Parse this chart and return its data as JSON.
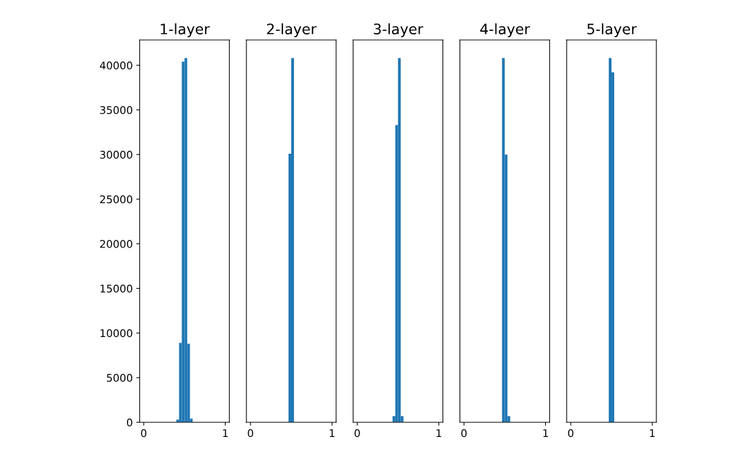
{
  "chart_data": [
    {
      "type": "histogram",
      "title": "1-layer",
      "color": "#1f77b4",
      "bins": [
        0,
        0.0333,
        0.0667,
        0.1,
        0.1333,
        0.1667,
        0.2,
        0.2333,
        0.2667,
        0.3,
        0.3333,
        0.3667,
        0.4,
        0.4333,
        0.4667,
        0.5,
        0.5333,
        0.5667,
        0.6,
        0.6333,
        0.6667,
        0.7,
        0.7333,
        0.7667,
        0.8,
        0.8333,
        0.8667,
        0.9,
        0.9333,
        0.9667,
        1
      ],
      "values": [
        0,
        0,
        0,
        0,
        0,
        0,
        0,
        0,
        0,
        0,
        0,
        0,
        300,
        8900,
        40400,
        40800,
        8800,
        400,
        0,
        0,
        0,
        0,
        0,
        0,
        0,
        0,
        0,
        0,
        0,
        0
      ],
      "xlim": [
        -0.05,
        1.05
      ],
      "xticks": [
        0,
        1
      ],
      "ylim": [
        0,
        42840
      ],
      "yticks": [
        0,
        5000,
        10000,
        15000,
        20000,
        25000,
        30000,
        35000,
        40000
      ]
    },
    {
      "type": "histogram",
      "title": "2-layer",
      "color": "#1f77b4",
      "bins": [
        0,
        0.0333,
        0.0667,
        0.1,
        0.1333,
        0.1667,
        0.2,
        0.2333,
        0.2667,
        0.3,
        0.3333,
        0.3667,
        0.4,
        0.4333,
        0.4667,
        0.5,
        0.5333,
        0.5667,
        0.6,
        0.6333,
        0.6667,
        0.7,
        0.7333,
        0.7667,
        0.8,
        0.8333,
        0.8667,
        0.9,
        0.9333,
        0.9667,
        1
      ],
      "values": [
        0,
        0,
        0,
        0,
        0,
        0,
        0,
        0,
        0,
        0,
        0,
        0,
        0,
        0,
        30100,
        40800,
        0,
        0,
        0,
        0,
        0,
        0,
        0,
        0,
        0,
        0,
        0,
        0,
        0,
        0
      ],
      "xlim": [
        -0.05,
        1.05
      ],
      "xticks": [
        0,
        1
      ],
      "ylim": [
        0,
        42840
      ],
      "tick_labels": "x"
    },
    {
      "type": "histogram",
      "title": "3-layer",
      "color": "#1f77b4",
      "bins": [
        0,
        0.0333,
        0.0667,
        0.1,
        0.1333,
        0.1667,
        0.2,
        0.2333,
        0.2667,
        0.3,
        0.3333,
        0.3667,
        0.4,
        0.4333,
        0.4667,
        0.5,
        0.5333,
        0.5667,
        0.6,
        0.6333,
        0.6667,
        0.7,
        0.7333,
        0.7667,
        0.8,
        0.8333,
        0.8667,
        0.9,
        0.9333,
        0.9667,
        1
      ],
      "values": [
        0,
        0,
        0,
        0,
        0,
        0,
        0,
        0,
        0,
        0,
        0,
        0,
        0,
        700,
        33300,
        40800,
        700,
        0,
        0,
        0,
        0,
        0,
        0,
        0,
        0,
        0,
        0,
        0,
        0,
        0
      ],
      "xlim": [
        -0.05,
        1.05
      ],
      "xticks": [
        0,
        1
      ],
      "ylim": [
        0,
        42840
      ],
      "tick_labels": "x"
    },
    {
      "type": "histogram",
      "title": "4-layer",
      "color": "#1f77b4",
      "bins": [
        0,
        0.0333,
        0.0667,
        0.1,
        0.1333,
        0.1667,
        0.2,
        0.2333,
        0.2667,
        0.3,
        0.3333,
        0.3667,
        0.4,
        0.4333,
        0.4667,
        0.5,
        0.5333,
        0.5667,
        0.6,
        0.6333,
        0.6667,
        0.7,
        0.7333,
        0.7667,
        0.8,
        0.8333,
        0.8667,
        0.9,
        0.9333,
        0.9667,
        1
      ],
      "values": [
        0,
        0,
        0,
        0,
        0,
        0,
        0,
        0,
        0,
        0,
        0,
        0,
        0,
        0,
        40800,
        30000,
        700,
        0,
        0,
        0,
        0,
        0,
        0,
        0,
        0,
        0,
        0,
        0,
        0,
        0
      ],
      "xlim": [
        -0.05,
        1.05
      ],
      "xticks": [
        0,
        1
      ],
      "ylim": [
        0,
        42840
      ],
      "tick_labels": "x"
    },
    {
      "type": "histogram",
      "title": "5-layer",
      "color": "#1f77b4",
      "bins": [
        0,
        0.0333,
        0.0667,
        0.1,
        0.1333,
        0.1667,
        0.2,
        0.2333,
        0.2667,
        0.3,
        0.3333,
        0.3667,
        0.4,
        0.4333,
        0.4667,
        0.5,
        0.5333,
        0.5667,
        0.6,
        0.6333,
        0.6667,
        0.7,
        0.7333,
        0.7667,
        0.8,
        0.8333,
        0.8667,
        0.9,
        0.9333,
        0.9667,
        1
      ],
      "values": [
        0,
        0,
        0,
        0,
        0,
        0,
        0,
        0,
        0,
        0,
        0,
        0,
        0,
        0,
        40800,
        39200,
        0,
        0,
        0,
        0,
        0,
        0,
        0,
        0,
        0,
        0,
        0,
        0,
        0,
        0
      ],
      "xlim": [
        -0.05,
        1.05
      ],
      "xticks": [
        0,
        1
      ],
      "ylim": [
        0,
        42840
      ],
      "tick_labels": "x"
    }
  ]
}
